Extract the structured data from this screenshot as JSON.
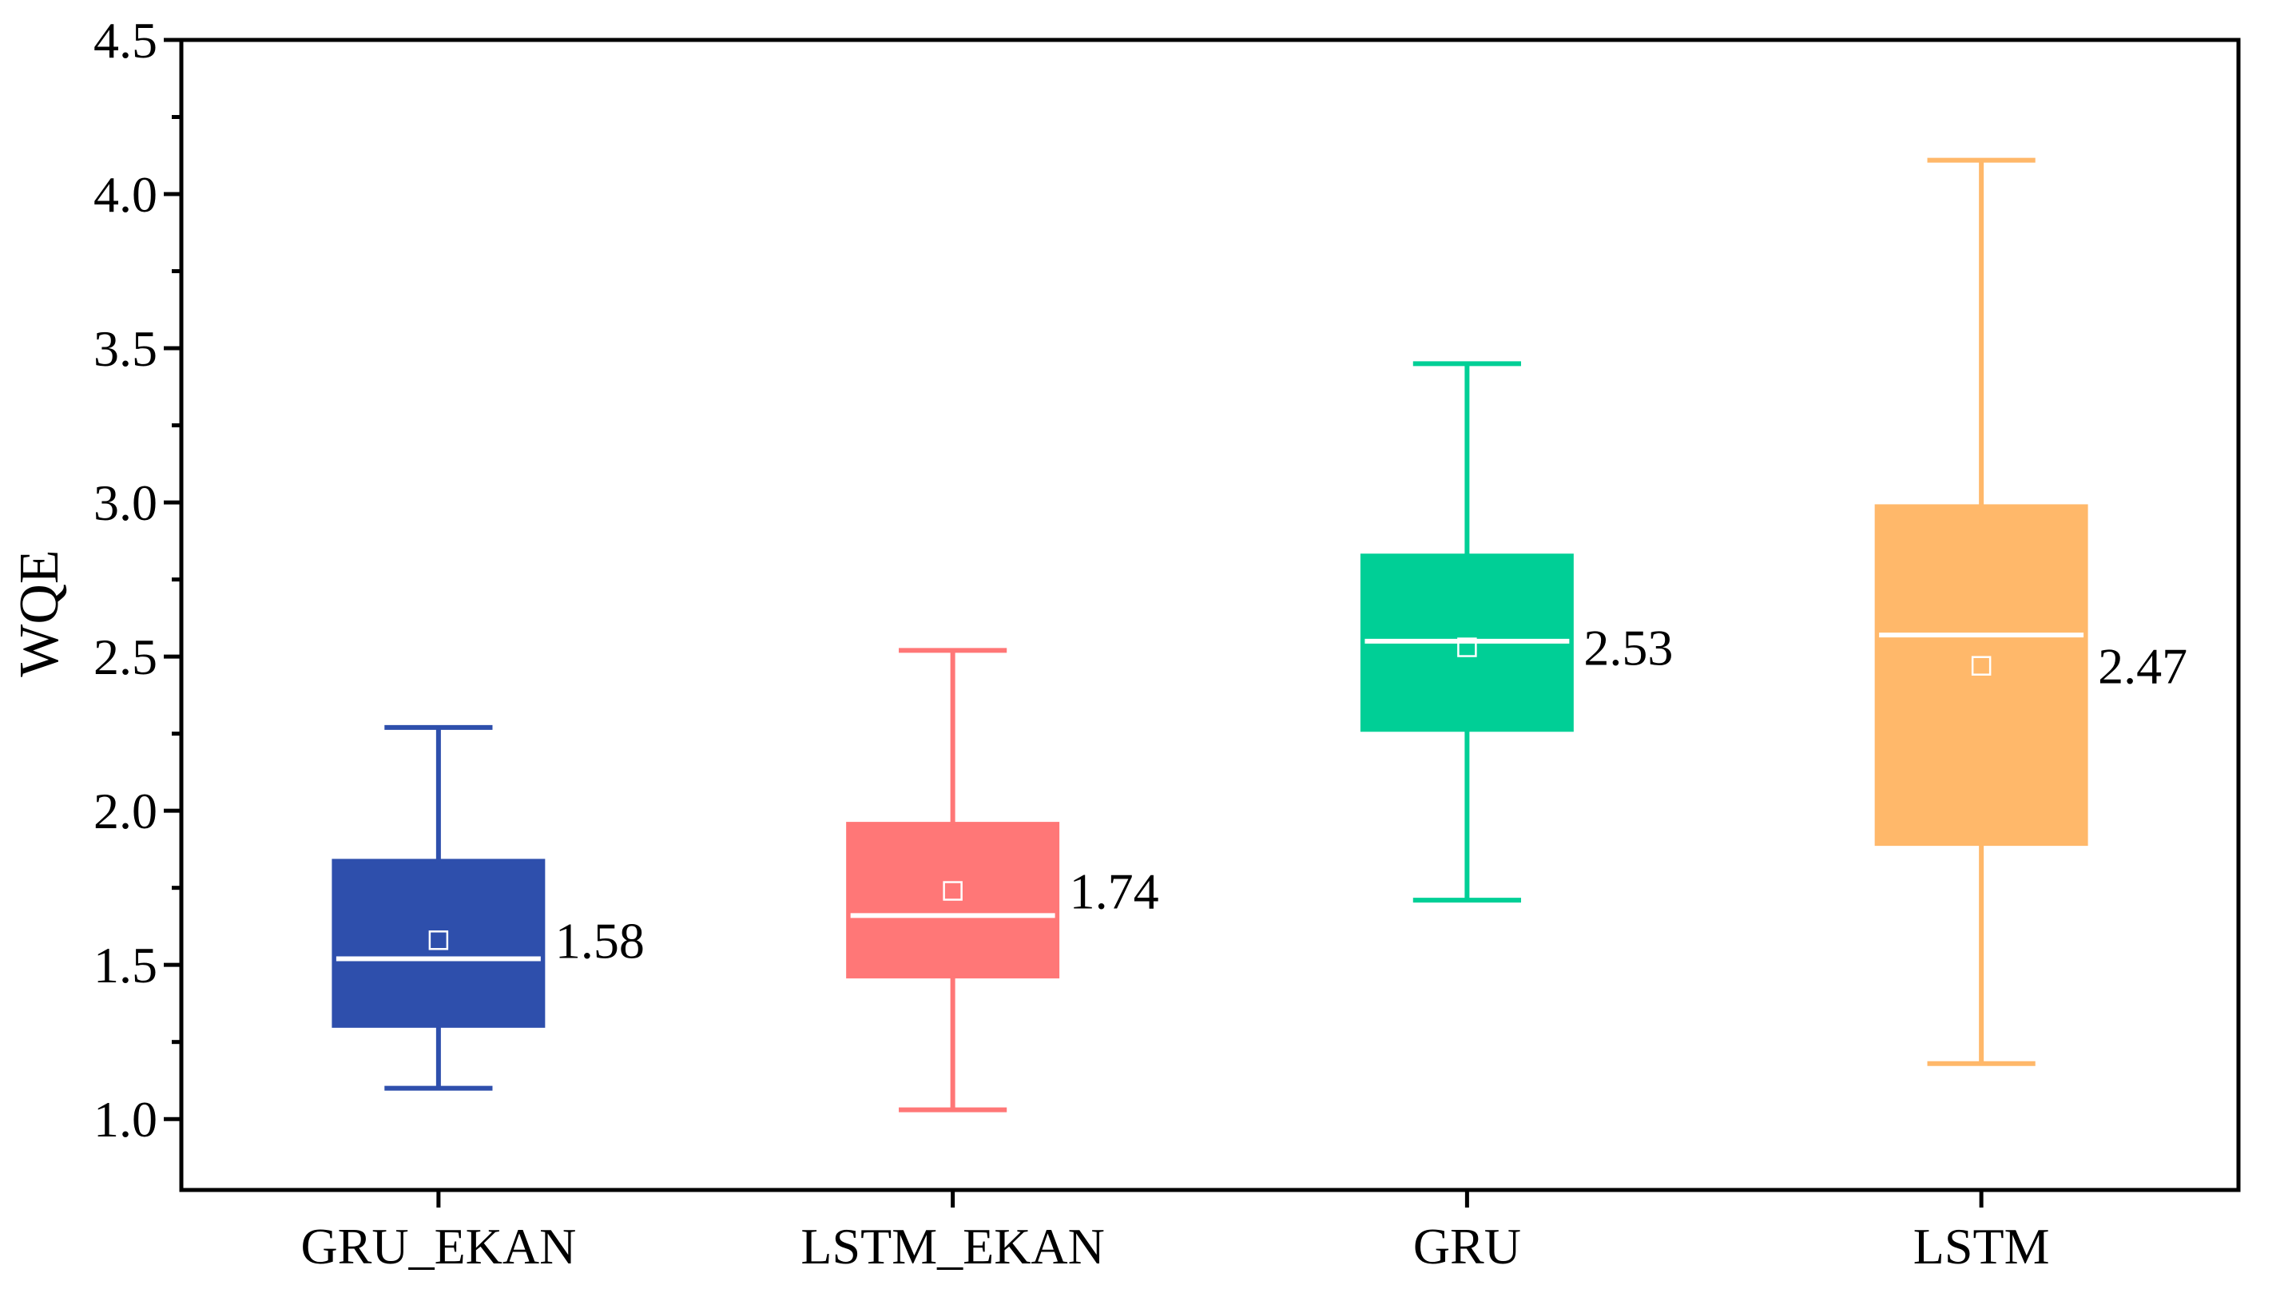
{
  "chart_data": {
    "type": "box",
    "title": "",
    "xlabel": "",
    "ylabel": "WQE",
    "ylim": [
      0.77,
      4.5
    ],
    "yticks": [
      1.0,
      1.5,
      2.0,
      2.5,
      3.0,
      3.5,
      4.0,
      4.5
    ],
    "ytick_labels": [
      "1.0",
      "1.5",
      "2.0",
      "2.5",
      "3.0",
      "3.5",
      "4.0",
      "4.5"
    ],
    "grid": false,
    "legend": "none",
    "categories": [
      "GRU_EKAN",
      "LSTM_EKAN",
      "GRU",
      "LSTM"
    ],
    "series": [
      {
        "category": "GRU_EKAN",
        "color": "#2e4fac",
        "whisker_low": 1.1,
        "q1": 1.3,
        "median": 1.52,
        "q3": 1.84,
        "whisker_high": 2.27,
        "mean": 1.58,
        "mean_label": "1.58"
      },
      {
        "category": "LSTM_EKAN",
        "color": "#ff7777",
        "whisker_low": 1.03,
        "q1": 1.46,
        "median": 1.66,
        "q3": 1.96,
        "whisker_high": 2.52,
        "mean": 1.74,
        "mean_label": "1.74"
      },
      {
        "category": "GRU",
        "color": "#00cf96",
        "whisker_low": 1.71,
        "q1": 2.26,
        "median": 2.55,
        "q3": 2.83,
        "whisker_high": 3.45,
        "mean": 2.53,
        "mean_label": "2.53"
      },
      {
        "category": "LSTM",
        "color": "#ffb86a",
        "whisker_low": 1.18,
        "q1": 1.89,
        "median": 2.57,
        "q3": 2.99,
        "whisker_high": 4.11,
        "mean": 2.47,
        "mean_label": "2.47"
      }
    ]
  }
}
